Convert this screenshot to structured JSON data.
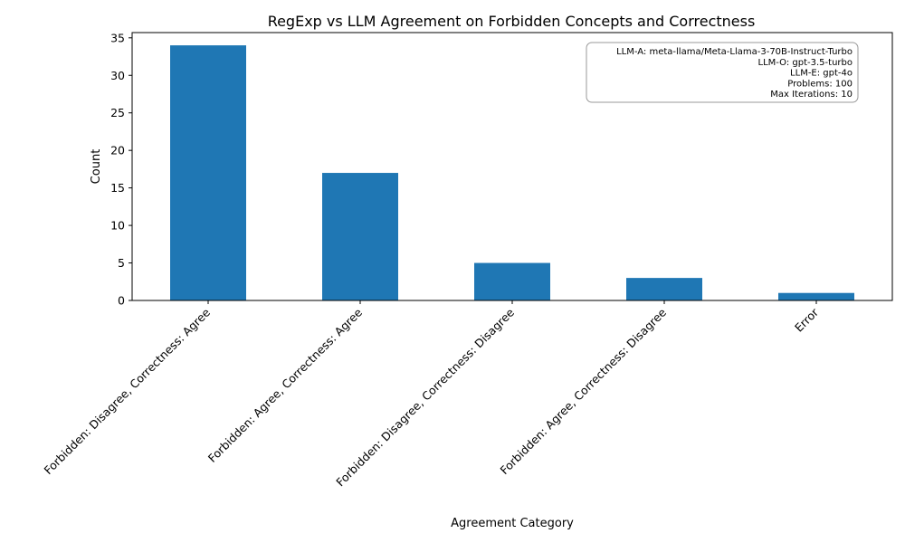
{
  "chart_data": {
    "type": "bar",
    "title": "RegExp vs LLM Agreement on Forbidden Concepts and Correctness",
    "xlabel": "Agreement Category",
    "ylabel": "Count",
    "categories": [
      "Forbidden: Disagree, Correctness: Agree",
      "Forbidden: Agree, Correctness: Agree",
      "Forbidden: Disagree, Correctness: Disagree",
      "Forbidden: Agree, Correctness: Disagree",
      "Error"
    ],
    "values": [
      34,
      17,
      5,
      3,
      1
    ],
    "ylim": [
      0,
      35.7
    ],
    "yticks": [
      0,
      5,
      10,
      15,
      20,
      25,
      30,
      35
    ],
    "bar_color": "#1f77b4",
    "grid": false,
    "annotation": {
      "lines": [
        "LLM-A: meta-llama/Meta-Llama-3-70B-Instruct-Turbo",
        "LLM-O: gpt-3.5-turbo",
        "LLM-E: gpt-4o",
        "Problems: 100",
        "Max Iterations: 10"
      ],
      "placement": "top-right"
    }
  }
}
